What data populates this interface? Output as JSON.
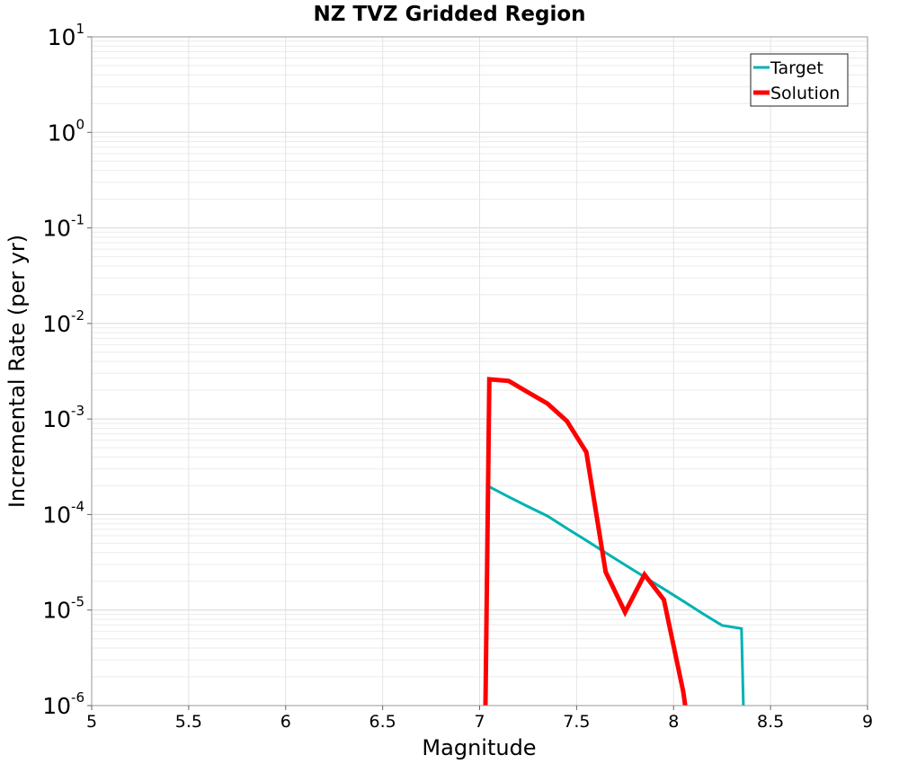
{
  "chart_data": {
    "type": "line",
    "title": "NZ TVZ Gridded Region",
    "xlabel": "Magnitude",
    "ylabel": "Incremental Rate (per yr)",
    "xlim": [
      5,
      9
    ],
    "ylim": [
      1e-06,
      10
    ],
    "yscale": "log",
    "x_ticks": [
      "5",
      "5.5",
      "6",
      "6.5",
      "7",
      "7.5",
      "8",
      "8.5",
      "9"
    ],
    "y_ticks": [
      {
        "base": "10",
        "exp": "-6"
      },
      {
        "base": "10",
        "exp": "-5"
      },
      {
        "base": "10",
        "exp": "-4"
      },
      {
        "base": "10",
        "exp": "-3"
      },
      {
        "base": "10",
        "exp": "-2"
      },
      {
        "base": "10",
        "exp": "-1"
      },
      {
        "base": "10",
        "exp": "0"
      },
      {
        "base": "10",
        "exp": "1"
      }
    ],
    "grid": true,
    "legend_position": "top-right",
    "series": [
      {
        "name": "Target",
        "color": "#00b2b2",
        "x": [
          7.05,
          7.15,
          7.25,
          7.35,
          7.45,
          7.55,
          7.65,
          7.75,
          7.85,
          7.95,
          8.05,
          8.15,
          8.25,
          8.35,
          8.36
        ],
        "y": [
          0.000195,
          0.000153,
          0.000121,
          9.65e-05,
          7.15e-05,
          5.35e-05,
          3.98e-05,
          2.97e-05,
          2.22e-05,
          1.66e-05,
          1.24e-05,
          9.2e-06,
          6.9e-06,
          6.4e-06,
          1e-06
        ]
      },
      {
        "name": "Solution",
        "color": "#ff0000",
        "x": [
          7.03,
          7.05,
          7.15,
          7.25,
          7.35,
          7.45,
          7.55,
          7.65,
          7.75,
          7.85,
          7.95,
          8.05,
          8.06
        ],
        "y": [
          1e-06,
          0.0026,
          0.0025,
          0.0019,
          0.00145,
          0.00095,
          0.00045,
          2.5e-05,
          9.5e-06,
          2.35e-05,
          1.28e-05,
          1.4e-06,
          1e-06
        ]
      }
    ]
  }
}
